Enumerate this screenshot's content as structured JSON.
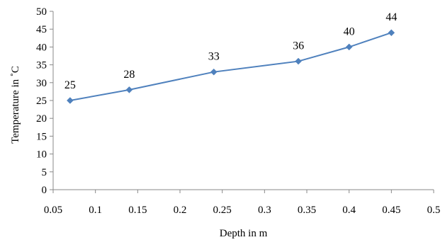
{
  "chart_data": {
    "type": "line",
    "xlabel": "Depth in m",
    "ylabel": "Temperature in ˚C",
    "xlim": [
      0.05,
      0.5
    ],
    "ylim": [
      0,
      50
    ],
    "x_ticks": [
      "0.05",
      "0.1",
      "0.15",
      "0.2",
      "0.25",
      "0.3",
      "0.35",
      "0.4",
      "0.45",
      "0.5"
    ],
    "y_ticks": [
      "0",
      "5",
      "10",
      "15",
      "20",
      "25",
      "30",
      "35",
      "40",
      "45",
      "50"
    ],
    "grid": false,
    "legend": "none",
    "series": [
      {
        "x": [
          0.07,
          0.14,
          0.24,
          0.34,
          0.4,
          0.45
        ],
        "y": [
          25,
          28,
          33,
          36,
          40,
          44
        ],
        "labels": [
          "25",
          "28",
          "33",
          "36",
          "40",
          "44"
        ],
        "color": "#4f81bd",
        "marker": "diamond"
      }
    ]
  }
}
